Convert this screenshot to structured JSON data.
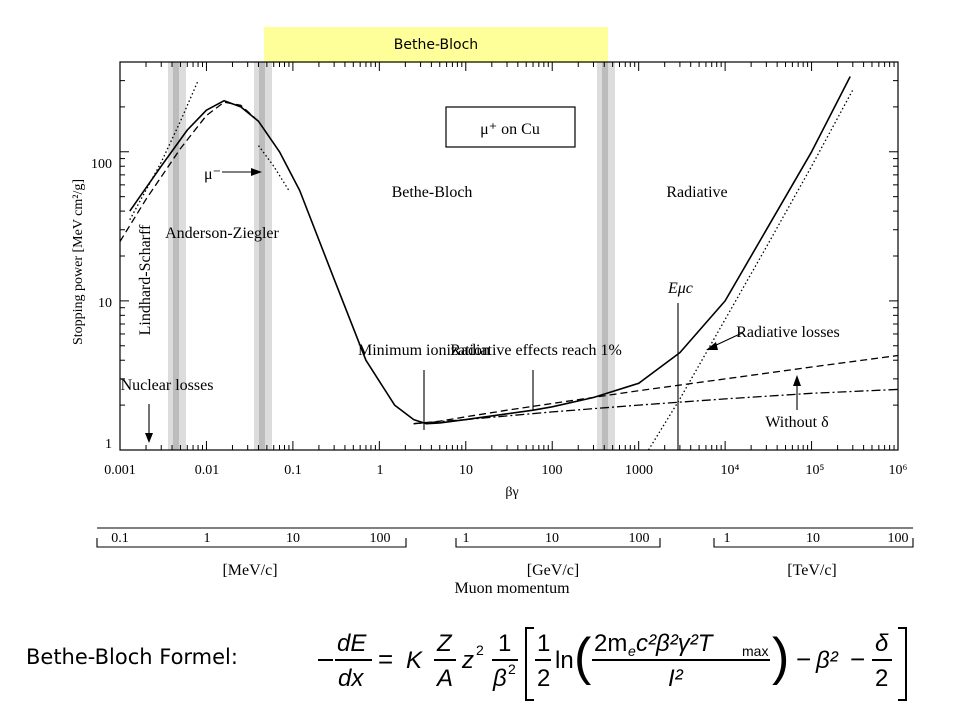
{
  "header": {
    "banner_text": "Bethe-Bloch"
  },
  "formula": {
    "label": "Bethe-Bloch Formel:",
    "lhs_num": "dE",
    "lhs_den": "dx",
    "K": "K",
    "Z": "Z",
    "A": "A",
    "z2": "z",
    "one": "1",
    "beta2": "β",
    "half": "1",
    "two": "2",
    "ln": "ln",
    "num": "2m",
    "num_e": "e",
    "num_rest": "c²β²γ²T",
    "num_max": "max",
    "I2": "I²",
    "minus_beta2": "β²",
    "delta": "δ"
  },
  "chart_data": {
    "type": "line",
    "title": "",
    "legend_box": "μ⁺ on Cu",
    "xlabel": "βγ",
    "ylabel": "Stopping power [MeV cm²/g]",
    "x_scale": "log",
    "y_scale": "log",
    "xlim": [
      0.001,
      1000000
    ],
    "ylim": [
      1,
      400
    ],
    "x_ticks": [
      "0.001",
      "0.01",
      "0.1",
      "1",
      "10",
      "100",
      "1000",
      "10⁴",
      "10⁵",
      "10⁶"
    ],
    "y_ticks": [
      "1",
      "10",
      "100"
    ],
    "grid": false,
    "regions": [
      "Lindhard-Scharff",
      "Anderson-Ziegler",
      "Bethe-Bloch",
      "Radiative"
    ],
    "annotations": [
      "Nuclear losses",
      "μ⁻",
      "Minimum ionization",
      "Radiative effects reach 1%",
      "Eμc",
      "Radiative losses",
      "Without δ"
    ],
    "series": [
      {
        "style": "solid",
        "x": [
          0.0013,
          0.003,
          0.006,
          0.01,
          0.016,
          0.025,
          0.04,
          0.07,
          0.12,
          0.3,
          0.7,
          1.5,
          2.5,
          3.5,
          5,
          10,
          30,
          60,
          100,
          300,
          1000,
          3000,
          10000,
          30000,
          100000,
          280000
        ],
        "y": [
          40,
          80,
          140,
          190,
          220,
          200,
          160,
          100,
          55,
          14,
          4,
          2.0,
          1.6,
          1.5,
          1.52,
          1.6,
          1.75,
          1.85,
          1.95,
          2.25,
          2.8,
          4.5,
          10,
          30,
          100,
          320
        ]
      },
      {
        "style": "dashed",
        "x": [
          0.001,
          0.002,
          0.005,
          0.01,
          0.016,
          0.025,
          0.04
        ],
        "y": [
          25,
          48,
          105,
          175,
          215,
          205,
          160
        ]
      },
      {
        "style": "dashed",
        "x": [
          2.5,
          5,
          10,
          30,
          100,
          1000,
          10000,
          100000,
          1000000
        ],
        "y": [
          1.5,
          1.56,
          1.67,
          1.85,
          2.05,
          2.5,
          3.0,
          3.6,
          4.3
        ]
      },
      {
        "style": "dashdot",
        "x": [
          2.5,
          10,
          100,
          1000,
          10000,
          100000,
          1000000
        ],
        "y": [
          1.5,
          1.6,
          1.8,
          2.0,
          2.2,
          2.4,
          2.55
        ]
      },
      {
        "style": "dotted",
        "x": [
          0.0013,
          0.003,
          0.005,
          0.008
        ],
        "y": [
          35,
          85,
          160,
          300
        ]
      },
      {
        "style": "dotted",
        "x": [
          0.04,
          0.06,
          0.09
        ],
        "y": [
          110,
          80,
          55
        ]
      },
      {
        "style": "dotted",
        "x": [
          1300,
          3000,
          10000,
          30000,
          100000,
          300000
        ],
        "y": [
          1,
          2.2,
          7.5,
          23,
          80,
          260
        ]
      }
    ],
    "momentum_axes": [
      {
        "unit": "[MeV/c]",
        "ticks": [
          "0.1",
          "1",
          "10",
          "100"
        ]
      },
      {
        "unit": "[GeV/c]",
        "ticks": [
          "1",
          "10",
          "100"
        ]
      },
      {
        "unit": "[TeV/c]",
        "ticks": [
          "1",
          "10",
          "100"
        ]
      }
    ],
    "momentum_label": "Muon momentum"
  }
}
